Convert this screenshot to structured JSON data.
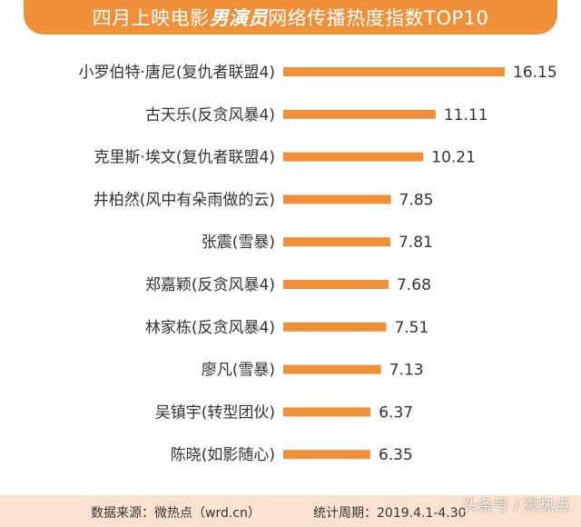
{
  "title": {
    "prefix": "四月上映电影",
    "emphasis": "男演员",
    "suffix": "网络传播热度指数TOP10"
  },
  "chart_data": {
    "type": "bar",
    "orientation": "horizontal",
    "categories": [
      "小罗伯特·唐尼(复仇者联盟4)",
      "古天乐(反贪风暴4)",
      "克里斯·埃文(复仇者联盟4)",
      "井柏然(风中有朵雨做的云)",
      "张震(雪暴)",
      "郑嘉颖(反贪风暴4)",
      "林家栋(反贪风暴4)",
      "廖凡(雪暴)",
      "吴镇宇(转型团伙)",
      "陈晓(如影随心)"
    ],
    "values": [
      16.15,
      11.11,
      10.21,
      7.85,
      7.81,
      7.68,
      7.51,
      7.13,
      6.37,
      6.35
    ],
    "value_labels": [
      "16.15",
      "11.11",
      "10.21",
      "7.85",
      "7.81",
      "7.68",
      "7.51",
      "7.13",
      "6.37",
      "6.35"
    ],
    "bar_color": "#f0913a",
    "grid": false,
    "legend": "none"
  },
  "footer": {
    "source": "数据来源：微热点（wrd.cn）",
    "period": "统计周期：2019.4.1-4.30"
  },
  "watermark": "头条号 / 微热点",
  "colors": {
    "accent": "#f0913a",
    "footer_bg": "#fbe3cf"
  }
}
